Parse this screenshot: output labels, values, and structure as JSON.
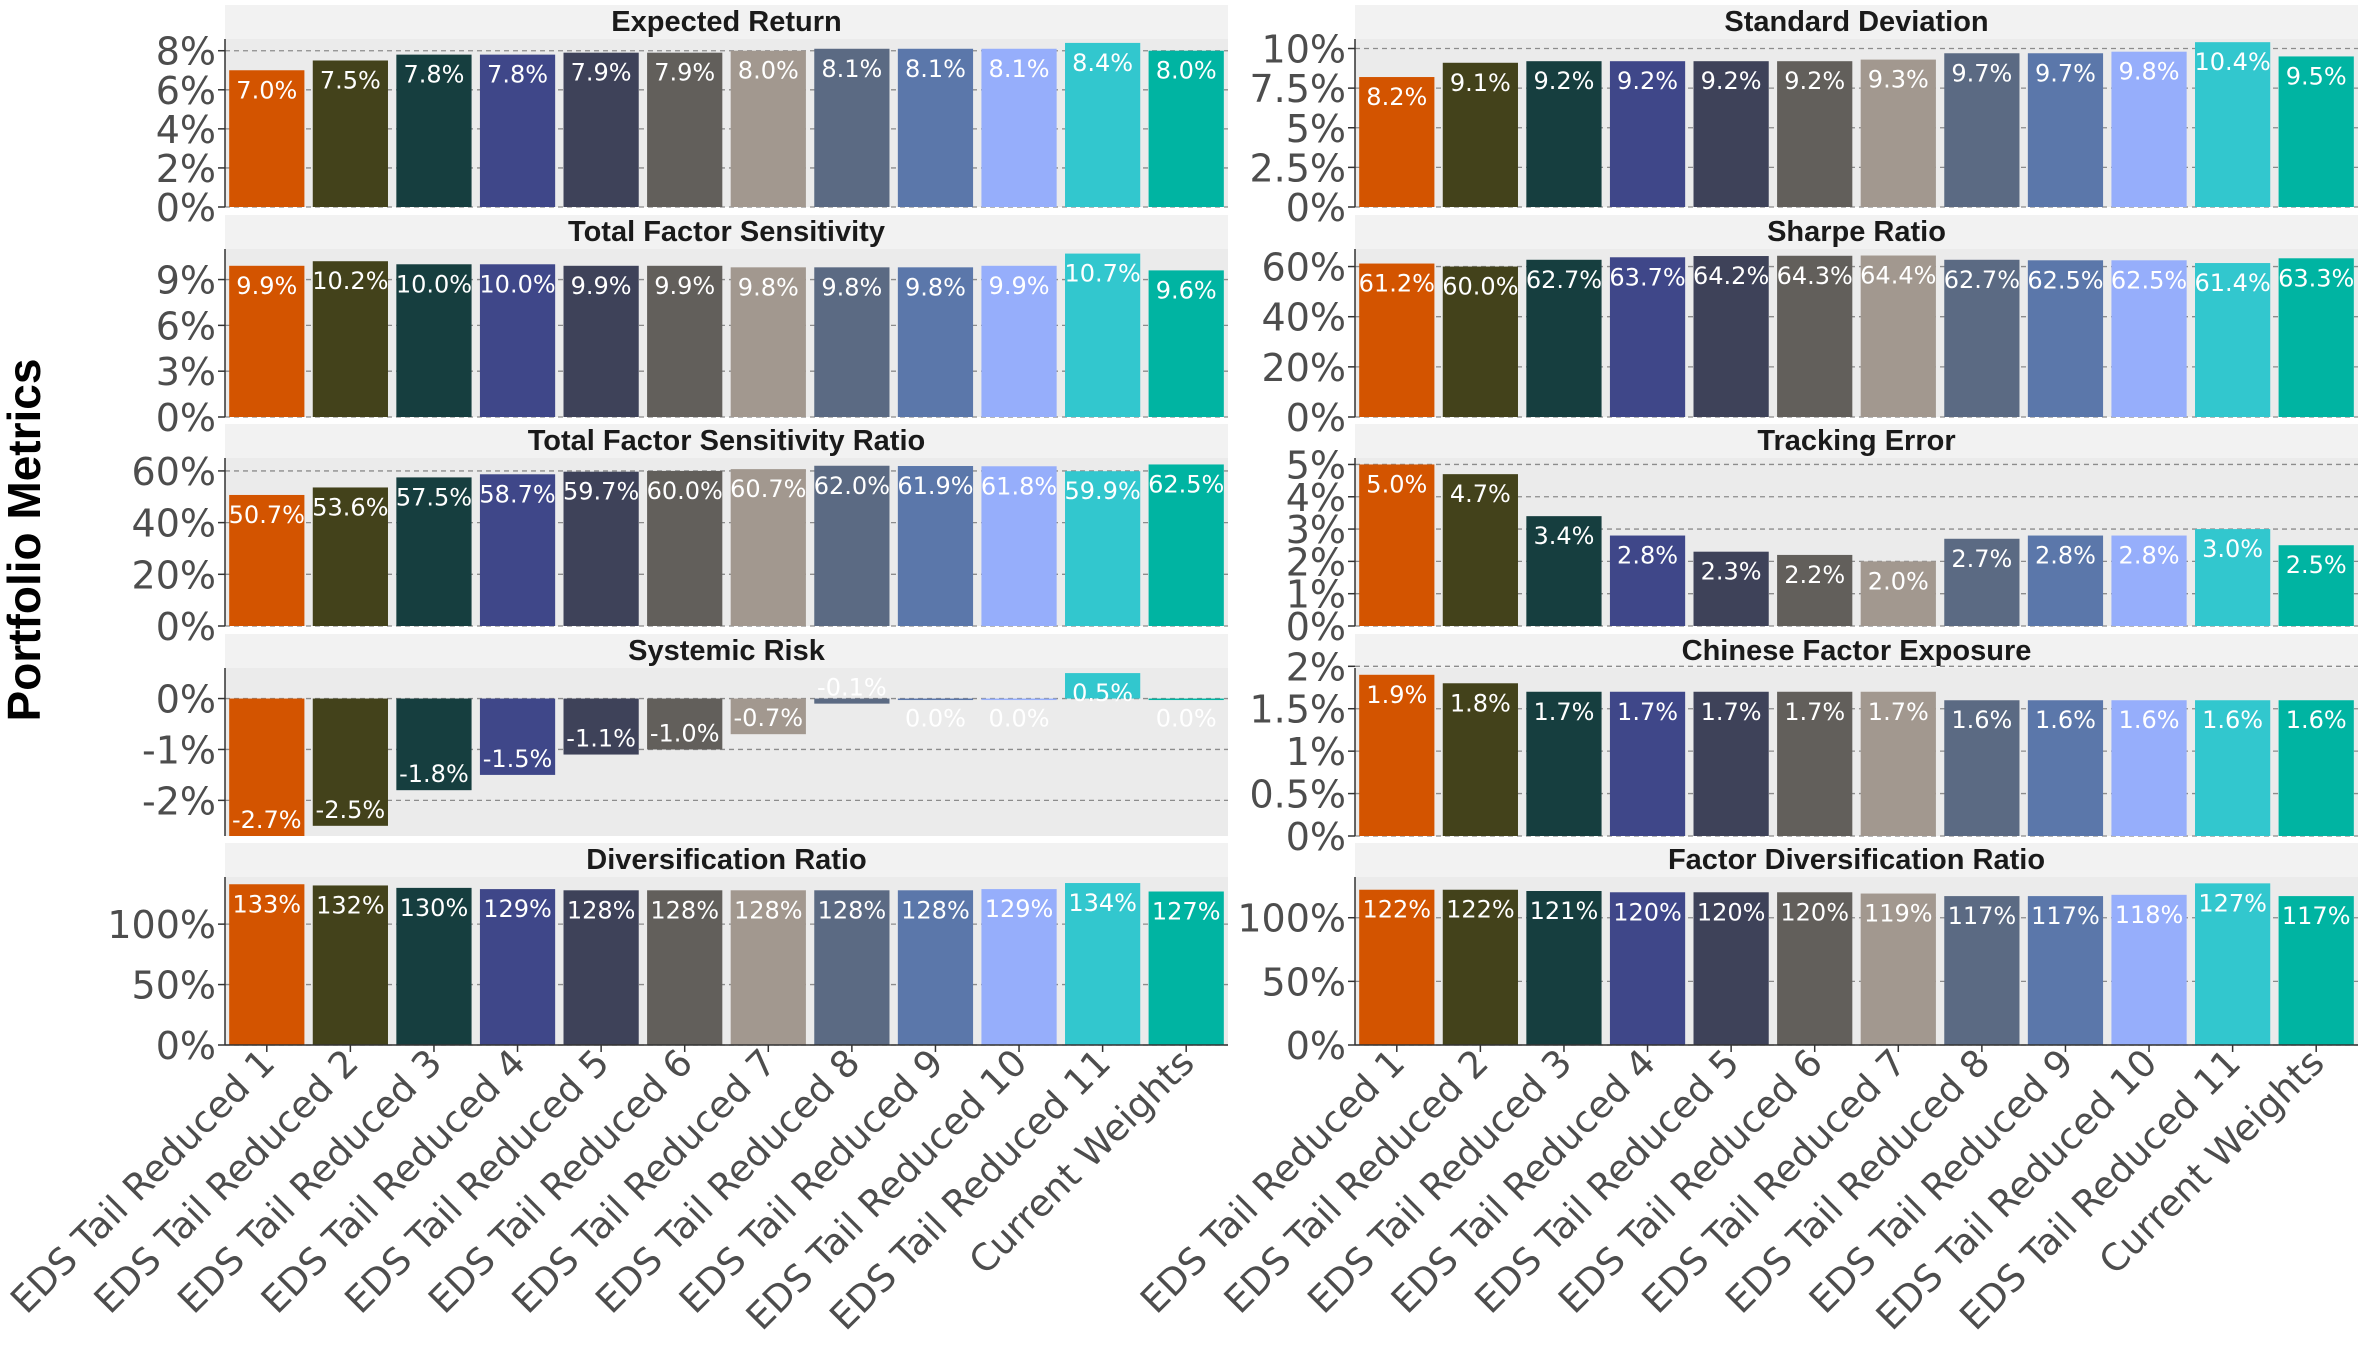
{
  "chart_data": {
    "type": "bar",
    "ylabel": "Portfolio Metrics",
    "categories": [
      "EDS Tail Reduced 1",
      "EDS Tail Reduced 2",
      "EDS Tail Reduced 3",
      "EDS Tail Reduced 4",
      "EDS Tail Reduced 5",
      "EDS Tail Reduced 6",
      "EDS Tail Reduced 7",
      "EDS Tail Reduced 8",
      "EDS Tail Reduced 9",
      "EDS Tail Reduced 10",
      "EDS Tail Reduced 11",
      "Current Weights"
    ],
    "colors": [
      "#D35400",
      "#43421B",
      "#163E3F",
      "#3F4789",
      "#3E4259",
      "#625F5B",
      "#A2988F",
      "#5B6A83",
      "#5B77AA",
      "#96AEFB",
      "#32C7CE",
      "#00B4A2"
    ],
    "panels": [
      {
        "title": "Expected Return",
        "values": [
          7.0,
          7.5,
          7.8,
          7.8,
          7.9,
          7.9,
          8.0,
          8.1,
          8.1,
          8.1,
          8.4,
          8.0
        ],
        "labels": [
          "7.0%",
          "7.5%",
          "7.8%",
          "7.8%",
          "7.9%",
          "7.9%",
          "8.0%",
          "8.1%",
          "8.1%",
          "8.1%",
          "8.4%",
          "8.0%"
        ],
        "ylim": [
          0,
          8.6
        ],
        "ticks": [
          0,
          2,
          4,
          6,
          8
        ],
        "tick_labels": [
          "0%",
          "2%",
          "4%",
          "6%",
          "8%"
        ]
      },
      {
        "title": "Standard Deviation",
        "values": [
          8.2,
          9.1,
          9.2,
          9.2,
          9.2,
          9.2,
          9.3,
          9.7,
          9.7,
          9.8,
          10.4,
          9.5
        ],
        "labels": [
          "8.2%",
          "9.1%",
          "9.2%",
          "9.2%",
          "9.2%",
          "9.2%",
          "9.3%",
          "9.7%",
          "9.7%",
          "9.8%",
          "10.4%",
          "9.5%"
        ],
        "ylim": [
          0,
          10.6
        ],
        "ticks": [
          0,
          2.5,
          5,
          7.5,
          10
        ],
        "tick_labels": [
          "0%",
          "2.5%",
          "5%",
          "7.5%",
          "10%"
        ]
      },
      {
        "title": "Total Factor Sensitivity",
        "values": [
          9.9,
          10.2,
          10.0,
          10.0,
          9.9,
          9.9,
          9.8,
          9.8,
          9.8,
          9.9,
          10.7,
          9.6
        ],
        "labels": [
          "9.9%",
          "10.2%",
          "10.0%",
          "10.0%",
          "9.9%",
          "9.9%",
          "9.8%",
          "9.8%",
          "9.8%",
          "9.9%",
          "10.7%",
          "9.6%"
        ],
        "ylim": [
          0,
          11.0
        ],
        "ticks": [
          0,
          3,
          6,
          9
        ],
        "tick_labels": [
          "0%",
          "3%",
          "6%",
          "9%"
        ]
      },
      {
        "title": "Sharpe Ratio",
        "values": [
          61.2,
          60.0,
          62.7,
          63.7,
          64.2,
          64.3,
          64.4,
          62.7,
          62.5,
          62.5,
          61.4,
          63.3
        ],
        "labels": [
          "61.2%",
          "60.0%",
          "62.7%",
          "63.7%",
          "64.2%",
          "64.3%",
          "64.4%",
          "62.7%",
          "62.5%",
          "62.5%",
          "61.4%",
          "63.3%"
        ],
        "ylim": [
          0,
          67
        ],
        "ticks": [
          0,
          20,
          40,
          60
        ],
        "tick_labels": [
          "0%",
          "20%",
          "40%",
          "60%"
        ]
      },
      {
        "title": "Total Factor Sensitivity Ratio",
        "values": [
          50.7,
          53.6,
          57.5,
          58.7,
          59.7,
          60.0,
          60.7,
          62.0,
          61.9,
          61.8,
          59.9,
          62.5
        ],
        "labels": [
          "50.7%",
          "53.6%",
          "57.5%",
          "58.7%",
          "59.7%",
          "60.0%",
          "60.7%",
          "62.0%",
          "61.9%",
          "61.8%",
          "59.9%",
          "62.5%"
        ],
        "ylim": [
          0,
          65
        ],
        "ticks": [
          0,
          20,
          40,
          60
        ],
        "tick_labels": [
          "0%",
          "20%",
          "40%",
          "60%"
        ]
      },
      {
        "title": "Tracking Error",
        "values": [
          5.0,
          4.7,
          3.4,
          2.8,
          2.3,
          2.2,
          2.0,
          2.7,
          2.8,
          2.8,
          3.0,
          2.5
        ],
        "labels": [
          "5.0%",
          "4.7%",
          "3.4%",
          "2.8%",
          "2.3%",
          "2.2%",
          "2.0%",
          "2.7%",
          "2.8%",
          "2.8%",
          "3.0%",
          "2.5%"
        ],
        "ylim": [
          0,
          5.2
        ],
        "ticks": [
          0,
          1,
          2,
          3,
          4,
          5
        ],
        "tick_labels": [
          "0%",
          "1%",
          "2%",
          "3%",
          "4%",
          "5%"
        ]
      },
      {
        "title": "Systemic Risk",
        "values": [
          -2.7,
          -2.5,
          -1.8,
          -1.5,
          -1.1,
          -1.0,
          -0.7,
          -0.1,
          0.0,
          0.0,
          0.5,
          0.0
        ],
        "labels": [
          "-2.7%",
          "-2.5%",
          "-1.8%",
          "-1.5%",
          "-1.1%",
          "-1.0%",
          "-0.7%",
          "-0.1%",
          "0.0%",
          "0.0%",
          "0.5%",
          "0.0%"
        ],
        "ylim": [
          -2.7,
          0.6
        ],
        "ticks": [
          -2,
          -1,
          0
        ],
        "tick_labels": [
          "-2%",
          "-1%",
          "0%"
        ]
      },
      {
        "title": "Chinese Factor Exposure",
        "values": [
          1.9,
          1.8,
          1.7,
          1.7,
          1.7,
          1.7,
          1.7,
          1.6,
          1.6,
          1.6,
          1.6,
          1.6
        ],
        "labels": [
          "1.9%",
          "1.8%",
          "1.7%",
          "1.7%",
          "1.7%",
          "1.7%",
          "1.7%",
          "1.6%",
          "1.6%",
          "1.6%",
          "1.6%",
          "1.6%"
        ],
        "ylim": [
          0,
          1.98
        ],
        "ticks": [
          0,
          0.5,
          1,
          1.5,
          2
        ],
        "tick_labels": [
          "0%",
          "0.5%",
          "1%",
          "1.5%",
          "2%"
        ]
      },
      {
        "title": "Diversification Ratio",
        "values": [
          133,
          132,
          130,
          129,
          128,
          128,
          128,
          128,
          128,
          129,
          134,
          127
        ],
        "labels": [
          "133%",
          "132%",
          "130%",
          "129%",
          "128%",
          "128%",
          "128%",
          "128%",
          "128%",
          "129%",
          "134%",
          "127%"
        ],
        "ylim": [
          0,
          139
        ],
        "ticks": [
          0,
          50,
          100
        ],
        "tick_labels": [
          "0%",
          "50%",
          "100%"
        ]
      },
      {
        "title": "Factor Diversification Ratio",
        "values": [
          122,
          122,
          121,
          120,
          120,
          120,
          119,
          117,
          117,
          118,
          127,
          117
        ],
        "labels": [
          "122%",
          "122%",
          "121%",
          "120%",
          "120%",
          "120%",
          "119%",
          "117%",
          "117%",
          "118%",
          "127%",
          "117%"
        ],
        "ylim": [
          0,
          132
        ],
        "ticks": [
          0,
          50,
          100
        ],
        "tick_labels": [
          "0%",
          "50%",
          "100%"
        ]
      }
    ]
  }
}
